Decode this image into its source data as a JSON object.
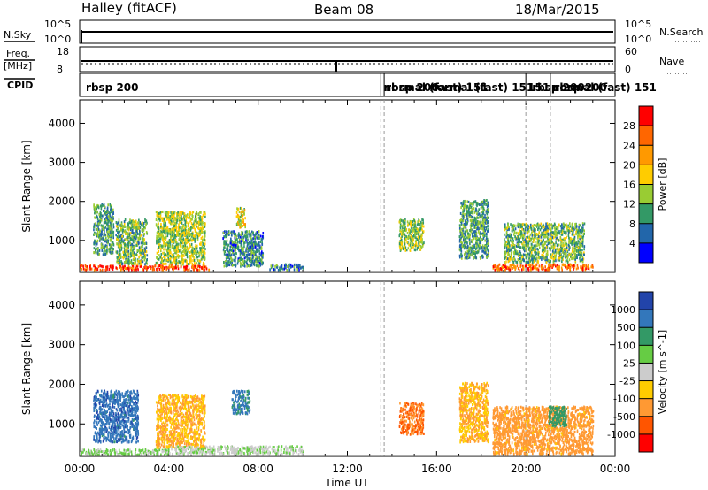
{
  "header": {
    "title": "Halley (fitACF)",
    "beam": "Beam 08",
    "date": "18/Mar/2015"
  },
  "strip_labels": {
    "nsky": "N.Sky",
    "nsearch": "N.Search",
    "freq": "Freq.",
    "freq_unit": "[MHz]",
    "nave": "Nave",
    "cpid": "CPID",
    "nsky_ticks": [
      "10^5",
      "10^0"
    ],
    "nsearch_ticks": [
      "10^5",
      "10^0"
    ],
    "freq_ticks": [
      "18",
      "8"
    ],
    "nave_ticks": [
      "60",
      "0"
    ]
  },
  "cpid_segments": [
    {
      "label": "rbsp 200",
      "time": 0.2
    },
    {
      "label": "normal (fast) 151",
      "time": 13.55
    },
    {
      "label": "rbsp 200",
      "time": 13.65
    },
    {
      "label": "normal (fast) 151",
      "time": 15.6
    },
    {
      "label": "rbsp 200",
      "time": 20.2
    },
    {
      "label": "151",
      "time": 20.0
    },
    {
      "label": "rbsp 200",
      "time": 21.2
    },
    {
      "label": "normal (fast) 151",
      "time": 21.1
    }
  ],
  "mode_changes": [
    13.5,
    13.65,
    20.0,
    21.1
  ],
  "x_axis": {
    "label": "Time UT",
    "ticks": [
      "00:00",
      "04:00",
      "08:00",
      "12:00",
      "16:00",
      "20:00",
      "00:00"
    ],
    "range": [
      0,
      24
    ]
  },
  "panels": [
    {
      "ylabel": "Slant Range [km]",
      "yticks": [
        "4000",
        "3000",
        "2000",
        "1000"
      ],
      "cb_label": "Power [dB]",
      "cb_ticks": [
        "28",
        "24",
        "20",
        "16",
        "12",
        "8",
        "4"
      ],
      "cb_colors": [
        "#ff0000",
        "#ff6600",
        "#ff9900",
        "#ffcc00",
        "#99cc33",
        "#339966",
        "#2266aa",
        "#0000ff"
      ]
    },
    {
      "ylabel": "Slant Range [km]",
      "yticks": [
        "4000",
        "3000",
        "2000",
        "1000"
      ],
      "cb_label": "Velocity [m s^-1]",
      "cb_ticks": [
        "1000",
        "500",
        "100",
        "25",
        "-25",
        "-100",
        "-500",
        "-1000"
      ],
      "cb_colors": [
        "#2244aa",
        "#3377bb",
        "#339966",
        "#66cc44",
        "#cccccc",
        "#ffcc00",
        "#ff9933",
        "#ff5500",
        "#ff0000"
      ]
    }
  ],
  "chart_data": {
    "type": "heatmap",
    "title": "Halley (fitACF)",
    "xlabel": "Time UT",
    "ylabel": "Slant Range [km]",
    "xlim": [
      0,
      24
    ],
    "ylim": [
      180,
      4600
    ],
    "x_unit": "hours UT",
    "y_unit": "km",
    "power_clusters": [
      {
        "t0": 0.0,
        "t1": 5.8,
        "r0": 200,
        "r1": 320,
        "level": 28
      },
      {
        "t0": 0.6,
        "t1": 1.5,
        "r0": 600,
        "r1": 1900,
        "level": 10
      },
      {
        "t0": 1.6,
        "t1": 3.0,
        "r0": 350,
        "r1": 1500,
        "level": 12
      },
      {
        "t0": 3.4,
        "t1": 5.6,
        "r0": 350,
        "r1": 1700,
        "level": 14
      },
      {
        "t0": 6.4,
        "t1": 8.2,
        "r0": 300,
        "r1": 1200,
        "level": 9
      },
      {
        "t0": 7.0,
        "t1": 7.4,
        "r0": 1300,
        "r1": 1800,
        "level": 16
      },
      {
        "t0": 8.5,
        "t1": 10.0,
        "r0": 200,
        "r1": 350,
        "level": 8
      },
      {
        "t0": 14.3,
        "t1": 15.4,
        "r0": 700,
        "r1": 1500,
        "level": 14
      },
      {
        "t0": 17.0,
        "t1": 18.3,
        "r0": 500,
        "r1": 2000,
        "level": 10
      },
      {
        "t0": 18.5,
        "t1": 23.0,
        "r0": 200,
        "r1": 350,
        "level": 26
      },
      {
        "t0": 19.0,
        "t1": 22.6,
        "r0": 400,
        "r1": 1400,
        "level": 12
      }
    ],
    "velocity_clusters": [
      {
        "t0": 0.0,
        "t1": 4.0,
        "r0": 180,
        "r1": 320,
        "level": 30
      },
      {
        "t0": 0.6,
        "t1": 2.6,
        "r0": 500,
        "r1": 1800,
        "level": 800
      },
      {
        "t0": 3.4,
        "t1": 5.6,
        "r0": 350,
        "r1": 1700,
        "level": -100
      },
      {
        "t0": 6.8,
        "t1": 7.6,
        "r0": 1200,
        "r1": 1800,
        "level": 600
      },
      {
        "t0": 4.0,
        "t1": 10.0,
        "r0": 200,
        "r1": 400,
        "level": 20
      },
      {
        "t0": 14.3,
        "t1": 15.4,
        "r0": 700,
        "r1": 1500,
        "level": -500
      },
      {
        "t0": 17.0,
        "t1": 18.3,
        "r0": 500,
        "r1": 2000,
        "level": -100
      },
      {
        "t0": 18.5,
        "t1": 23.0,
        "r0": 200,
        "r1": 1400,
        "level": -150
      },
      {
        "t0": 21.0,
        "t1": 21.8,
        "r0": 900,
        "r1": 1400,
        "level": 200
      }
    ]
  }
}
